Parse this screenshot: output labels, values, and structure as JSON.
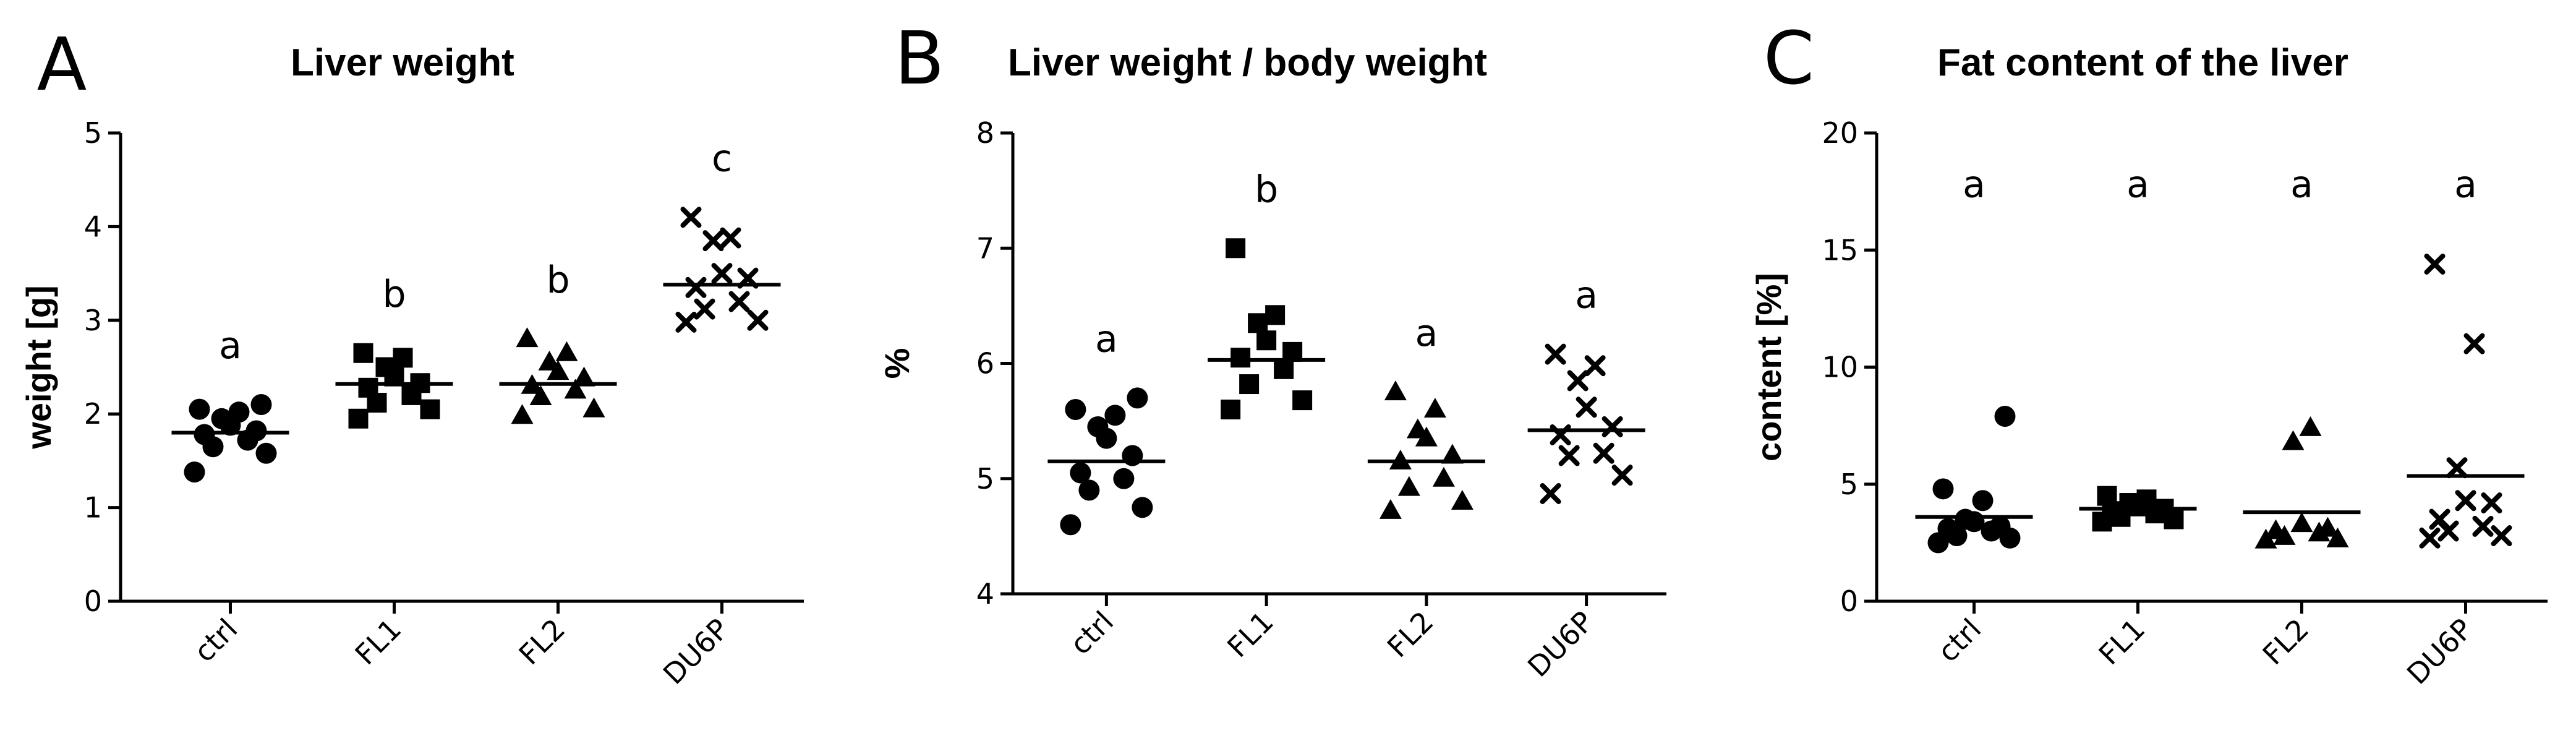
{
  "chart_data": [
    {
      "type": "scatter",
      "panel_letter": "A",
      "title": "Liver weight",
      "ylabel": "weight [g]",
      "ylim": [
        0,
        5
      ],
      "yticks": [
        "0",
        "1",
        "2",
        "3",
        "4",
        "5"
      ],
      "categories": [
        "ctrl",
        "FL1",
        "FL2",
        "DU6P"
      ],
      "groups": [
        {
          "category": "ctrl",
          "marker": "circle",
          "sig": "a",
          "mean": 1.8,
          "values": [
            1.38,
            1.58,
            1.65,
            1.72,
            1.78,
            1.82,
            1.88,
            1.95,
            2.02,
            2.05,
            2.1
          ]
        },
        {
          "category": "FL1",
          "marker": "square",
          "sig": "b",
          "mean": 2.32,
          "values": [
            1.95,
            2.05,
            2.12,
            2.2,
            2.28,
            2.33,
            2.4,
            2.5,
            2.6,
            2.65
          ]
        },
        {
          "category": "FL2",
          "marker": "triangle",
          "sig": "b",
          "mean": 2.32,
          "values": [
            1.98,
            2.05,
            2.18,
            2.25,
            2.3,
            2.38,
            2.45,
            2.55,
            2.65,
            2.8
          ]
        },
        {
          "category": "DU6P",
          "marker": "cross",
          "sig": "c",
          "mean": 3.38,
          "values": [
            2.98,
            3.0,
            3.12,
            3.2,
            3.35,
            3.45,
            3.5,
            3.85,
            3.88,
            4.1
          ]
        }
      ]
    },
    {
      "type": "scatter",
      "panel_letter": "B",
      "title": "Liver weight / body weight",
      "ylabel": "%",
      "ylim": [
        4,
        8
      ],
      "yticks": [
        "4",
        "5",
        "6",
        "7",
        "8"
      ],
      "categories": [
        "ctrl",
        "FL1",
        "FL2",
        "DU6P"
      ],
      "groups": [
        {
          "category": "ctrl",
          "marker": "circle",
          "sig": "a",
          "mean": 5.15,
          "values": [
            4.6,
            4.75,
            4.9,
            5.0,
            5.05,
            5.2,
            5.35,
            5.45,
            5.55,
            5.6,
            5.7
          ]
        },
        {
          "category": "FL1",
          "marker": "square",
          "sig": "b",
          "mean": 6.03,
          "values": [
            5.6,
            5.68,
            5.82,
            5.95,
            6.05,
            6.1,
            6.2,
            6.35,
            6.42,
            7.0
          ]
        },
        {
          "category": "FL2",
          "marker": "triangle",
          "sig": "a",
          "mean": 5.15,
          "values": [
            4.72,
            4.8,
            4.92,
            5.0,
            5.15,
            5.2,
            5.35,
            5.42,
            5.6,
            5.75
          ]
        },
        {
          "category": "DU6P",
          "marker": "cross",
          "sig": "a",
          "mean": 5.42,
          "values": [
            4.87,
            5.03,
            5.2,
            5.22,
            5.38,
            5.45,
            5.62,
            5.85,
            5.98,
            6.08
          ]
        }
      ]
    },
    {
      "type": "scatter",
      "panel_letter": "C",
      "title": "Fat content of the liver",
      "ylabel": "content [%]",
      "ylim": [
        0,
        20
      ],
      "yticks": [
        "0",
        "5",
        "10",
        "15",
        "20"
      ],
      "categories": [
        "ctrl",
        "FL1",
        "FL2",
        "DU6P"
      ],
      "groups": [
        {
          "category": "ctrl",
          "marker": "circle",
          "sig": "a",
          "mean": 3.6,
          "values": [
            2.5,
            2.7,
            2.8,
            3.0,
            3.1,
            3.2,
            3.4,
            3.5,
            4.3,
            4.8,
            7.9
          ]
        },
        {
          "category": "FL1",
          "marker": "square",
          "sig": "a",
          "mean": 3.95,
          "values": [
            3.4,
            3.5,
            3.6,
            3.75,
            3.85,
            3.95,
            4.05,
            4.2,
            4.35,
            4.5
          ]
        },
        {
          "category": "FL2",
          "marker": "triangle",
          "sig": "a",
          "mean": 3.8,
          "values": [
            2.6,
            2.65,
            2.75,
            2.9,
            3.0,
            3.1,
            3.3,
            6.8,
            7.4
          ]
        },
        {
          "category": "DU6P",
          "marker": "cross",
          "sig": "a",
          "mean": 5.35,
          "values": [
            2.7,
            2.8,
            3.0,
            3.2,
            3.5,
            4.2,
            4.3,
            5.7,
            11.0,
            14.4
          ]
        }
      ]
    }
  ]
}
